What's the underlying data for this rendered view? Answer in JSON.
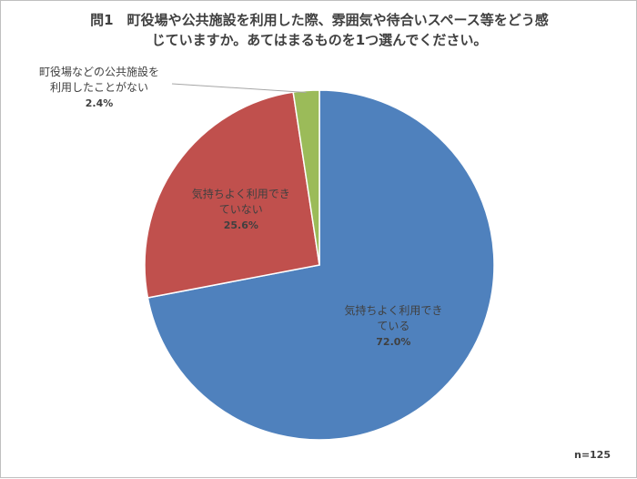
{
  "chart_data": {
    "type": "pie",
    "title_lines": [
      "問1　町役場や公共施設を利用した際、雰囲気や待合いスペース等をどう感",
      "じていますか。あてはまるものを1つ選んでください。"
    ],
    "slices": [
      {
        "label_lines": [
          "気持ちよく利用でき",
          "ている"
        ],
        "value": 72.0,
        "percent_label": "72.0%",
        "color": "#4f81bd"
      },
      {
        "label_lines": [
          "気持ちよく利用でき",
          "ていない"
        ],
        "value": 25.6,
        "percent_label": "25.6%",
        "color": "#c0504d"
      },
      {
        "label_lines": [
          "町役場などの公共施設を",
          "利用したことがない"
        ],
        "value": 2.4,
        "percent_label": "2.4%",
        "color": "#9bbb59"
      }
    ],
    "start_angle_deg": 0,
    "direction": "clockwise",
    "sample_size": "n=125"
  }
}
